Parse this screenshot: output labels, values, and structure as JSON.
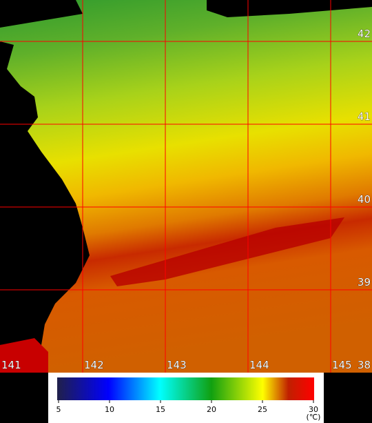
{
  "map": {
    "longitudes": [
      141,
      142,
      143,
      144,
      145
    ],
    "latitudes": [
      42,
      41,
      40,
      39,
      38
    ]
  },
  "colorbar": {
    "ticks": [
      5,
      10,
      15,
      20,
      25,
      30
    ],
    "unit": "(℃)"
  }
}
